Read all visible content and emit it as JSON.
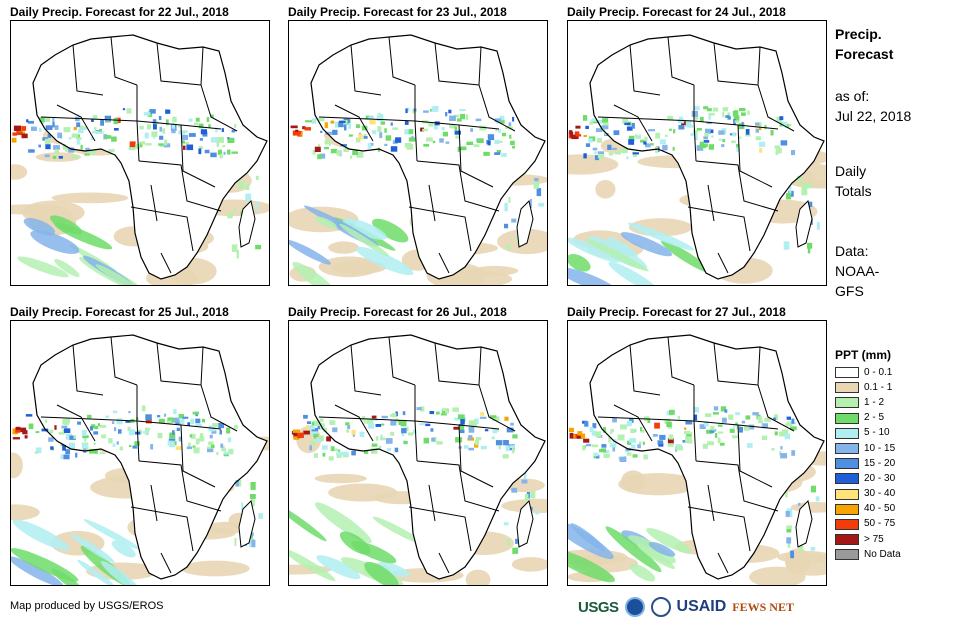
{
  "panels": [
    {
      "title": "Daily Precip. Forecast for 22 Jul., 2018"
    },
    {
      "title": "Daily Precip. Forecast for 23 Jul., 2018"
    },
    {
      "title": "Daily Precip. Forecast for 24 Jul., 2018"
    },
    {
      "title": "Daily Precip. Forecast for 25 Jul., 2018"
    },
    {
      "title": "Daily Precip. Forecast for 26 Jul., 2018"
    },
    {
      "title": "Daily Precip. Forecast for 27 Jul., 2018"
    }
  ],
  "sidebar": {
    "title_line1": "Precip.",
    "title_line2": "Forecast",
    "asof_line1": "as of:",
    "asof_line2": "Jul 22, 2018",
    "totals_line1": "Daily",
    "totals_line2": "Totals",
    "data_line1": "Data:",
    "data_line2": "NOAA-",
    "data_line3": "GFS"
  },
  "legend": {
    "title": "PPT (mm)",
    "items": [
      {
        "label": "0 - 0.1",
        "color": "#ffffff"
      },
      {
        "label": "0.1 - 1",
        "color": "#e8d6b4"
      },
      {
        "label": "1 - 2",
        "color": "#b4f0b0"
      },
      {
        "label": "2 - 5",
        "color": "#6fdc6a"
      },
      {
        "label": "5 - 10",
        "color": "#b0eef2"
      },
      {
        "label": "10 - 15",
        "color": "#84b4ea"
      },
      {
        "label": "15 - 20",
        "color": "#4f8fe0"
      },
      {
        "label": "20 - 30",
        "color": "#1f5fd8"
      },
      {
        "label": "30 - 40",
        "color": "#ffe27a"
      },
      {
        "label": "40 - 50",
        "color": "#f7a400"
      },
      {
        "label": "50 - 75",
        "color": "#f43c0a"
      },
      {
        "label": "> 75",
        "color": "#a51818"
      },
      {
        "label": "No Data",
        "color": "#9a9a9a"
      }
    ]
  },
  "footer": {
    "credit": "Map produced by USGS/EROS",
    "logos": {
      "usgs": "USGS",
      "usaid": "USAID",
      "fews": "FEWS NET"
    }
  },
  "chart_data": {
    "type": "heatmap",
    "title": "Precip. Forecast - Daily Totals",
    "variable": "PPT (mm)",
    "source": "NOAA-GFS",
    "issued": "Jul 22, 2018",
    "dates": [
      "22 Jul., 2018",
      "23 Jul., 2018",
      "24 Jul., 2018",
      "25 Jul., 2018",
      "26 Jul., 2018",
      "27 Jul., 2018"
    ],
    "bins": [
      "0 - 0.1",
      "0.1 - 1",
      "1 - 2",
      "2 - 5",
      "5 - 10",
      "10 - 15",
      "15 - 20",
      "20 - 30",
      "30 - 40",
      "40 - 50",
      "50 - 75",
      "> 75",
      "No Data"
    ]
  }
}
